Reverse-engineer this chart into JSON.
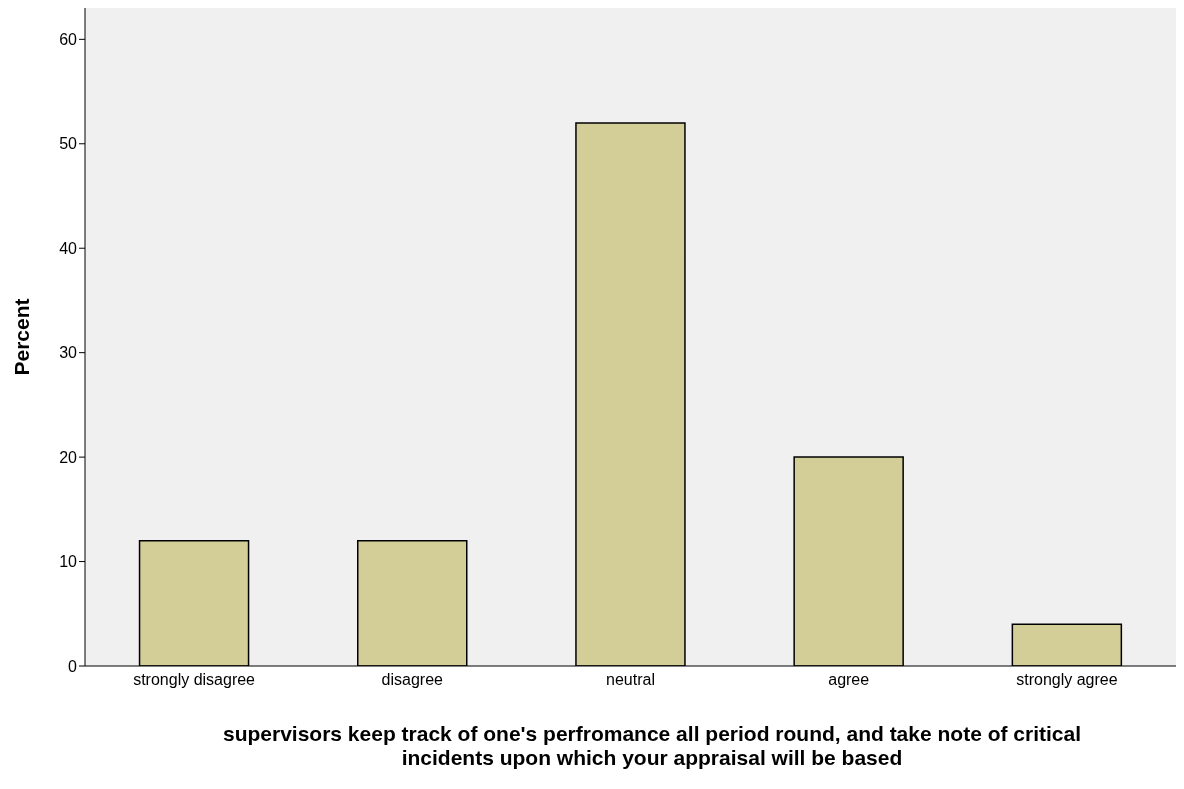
{
  "chart_data": {
    "type": "bar",
    "xlabel": "supervisors keep track of one's perfromance all period round, and take note of critical incidents upon which your appraisal will be based",
    "ylabel": "Percent",
    "categories": [
      "strongly disagree",
      "disagree",
      "neutral",
      "agree",
      "strongly agree"
    ],
    "values": [
      12,
      12,
      52,
      20,
      4
    ],
    "color": "#d3ce98",
    "ylim": [
      0,
      63
    ],
    "yticks": [
      0,
      10,
      20,
      30,
      40,
      50,
      60
    ],
    "grid": false
  }
}
